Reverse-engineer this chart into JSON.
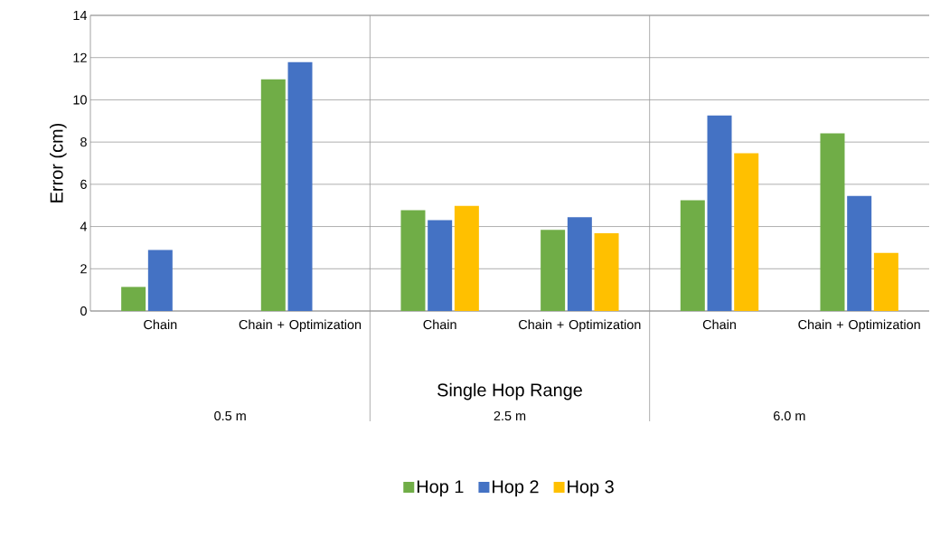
{
  "chart_data": {
    "type": "bar",
    "xlabel": "Single Hop Range",
    "ylabel": "Error (cm)",
    "categories": [
      "Chain",
      "Chain + Optimization",
      "Chain",
      "Chain + Optimization",
      "Chain",
      "Chain + Optimization"
    ],
    "series": [
      {
        "name": "Hop 1",
        "color": "#70ad47",
        "values": [
          1.14,
          10.97,
          4.77,
          3.84,
          5.24,
          8.41
        ]
      },
      {
        "name": "Hop 2",
        "color": "#4472c4",
        "values": [
          2.89,
          11.78,
          4.3,
          4.44,
          9.26,
          5.45
        ]
      },
      {
        "name": "Hop 3",
        "color": "#ffc000",
        "values": [
          null,
          null,
          4.98,
          3.68,
          7.47,
          2.75
        ]
      }
    ],
    "annotations": [
      "0.5 m",
      "2.5 m",
      "6.0 m"
    ],
    "ylim": [
      0,
      14
    ],
    "yticks": [
      0,
      2,
      4,
      6,
      8,
      10,
      12,
      14
    ],
    "grid": "y",
    "legend": "bottom"
  }
}
